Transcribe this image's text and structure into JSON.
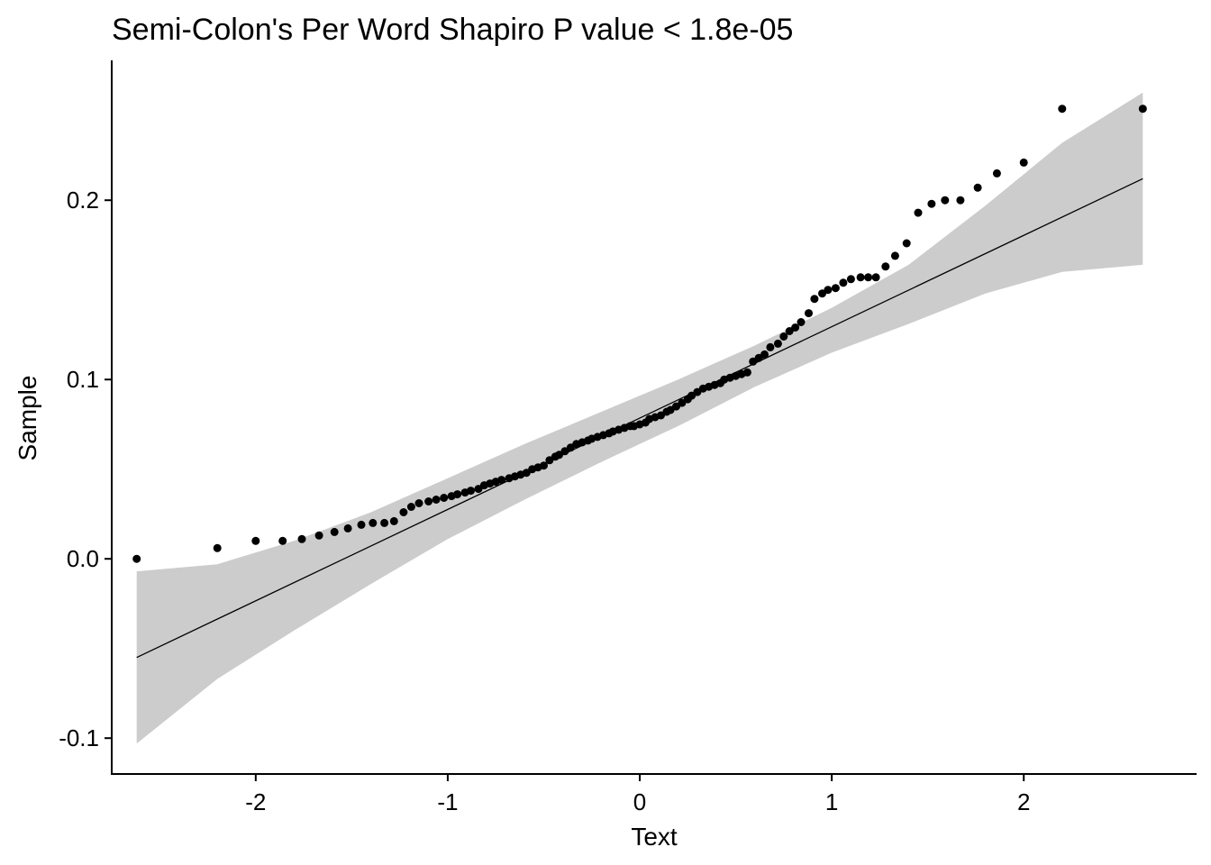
{
  "chart_data": {
    "type": "scatter",
    "title": "Semi-Colon's Per Word Shapiro P value <  1.8e-05",
    "xlabel": "Text",
    "ylabel": "Sample",
    "xlim": [
      -2.75,
      2.9
    ],
    "ylim": [
      -0.12,
      0.278
    ],
    "x_ticks": [
      -2,
      -1,
      0,
      1,
      2
    ],
    "x_tick_labels": [
      "-2",
      "-1",
      "0",
      "1",
      "2"
    ],
    "y_ticks": [
      -0.1,
      0.0,
      0.1,
      0.2
    ],
    "y_tick_labels": [
      "-0.1",
      "0.0",
      "0.1",
      "0.2"
    ],
    "grid": false,
    "colors": {
      "points": "#000000",
      "line": "#000000",
      "band": "#cccccc"
    },
    "reference_line": {
      "x": [
        -2.62,
        2.62
      ],
      "y": [
        -0.055,
        0.212
      ]
    },
    "confidence_band": {
      "x": [
        -2.62,
        -2.2,
        -1.8,
        -1.4,
        -1.0,
        -0.6,
        -0.2,
        0.0,
        0.2,
        0.6,
        1.0,
        1.4,
        1.8,
        2.2,
        2.62
      ],
      "upper": [
        -0.007,
        -0.003,
        0.01,
        0.026,
        0.045,
        0.064,
        0.082,
        0.091,
        0.1,
        0.119,
        0.14,
        0.164,
        0.197,
        0.232,
        0.26
      ],
      "lower": [
        -0.103,
        -0.067,
        -0.04,
        -0.014,
        0.011,
        0.033,
        0.054,
        0.064,
        0.074,
        0.096,
        0.115,
        0.131,
        0.148,
        0.16,
        0.164
      ]
    },
    "points": {
      "x": [
        -2.62,
        -2.2,
        -2.0,
        -1.86,
        -1.76,
        -1.67,
        -1.59,
        -1.52,
        -1.45,
        -1.39,
        -1.33,
        -1.28,
        -1.23,
        -1.19,
        -1.15,
        -1.1,
        -1.06,
        -1.02,
        -0.98,
        -0.95,
        -0.91,
        -0.88,
        -0.84,
        -0.81,
        -0.78,
        -0.75,
        -0.72,
        -0.68,
        -0.65,
        -0.62,
        -0.59,
        -0.56,
        -0.53,
        -0.5,
        -0.47,
        -0.44,
        -0.42,
        -0.39,
        -0.36,
        -0.33,
        -0.3,
        -0.27,
        -0.25,
        -0.22,
        -0.19,
        -0.16,
        -0.14,
        -0.11,
        -0.08,
        -0.05,
        -0.03,
        0.0,
        0.03,
        0.05,
        0.08,
        0.11,
        0.14,
        0.16,
        0.19,
        0.22,
        0.25,
        0.27,
        0.3,
        0.33,
        0.36,
        0.39,
        0.42,
        0.44,
        0.47,
        0.5,
        0.53,
        0.56,
        0.59,
        0.62,
        0.65,
        0.68,
        0.72,
        0.75,
        0.78,
        0.81,
        0.84,
        0.88,
        0.91,
        0.95,
        0.98,
        1.02,
        1.06,
        1.1,
        1.15,
        1.19,
        1.23,
        1.28,
        1.33,
        1.39,
        1.45,
        1.52,
        1.59,
        1.67,
        1.76,
        1.86,
        2.0,
        2.2,
        2.62
      ],
      "y": [
        0.0,
        0.006,
        0.01,
        0.01,
        0.011,
        0.013,
        0.015,
        0.017,
        0.019,
        0.02,
        0.02,
        0.021,
        0.026,
        0.029,
        0.031,
        0.032,
        0.033,
        0.034,
        0.035,
        0.036,
        0.037,
        0.038,
        0.039,
        0.041,
        0.042,
        0.043,
        0.044,
        0.045,
        0.046,
        0.047,
        0.048,
        0.05,
        0.051,
        0.052,
        0.055,
        0.057,
        0.058,
        0.06,
        0.062,
        0.064,
        0.065,
        0.066,
        0.067,
        0.068,
        0.069,
        0.07,
        0.071,
        0.072,
        0.073,
        0.074,
        0.074,
        0.075,
        0.076,
        0.078,
        0.079,
        0.08,
        0.082,
        0.083,
        0.085,
        0.087,
        0.089,
        0.091,
        0.093,
        0.095,
        0.096,
        0.097,
        0.098,
        0.1,
        0.101,
        0.102,
        0.103,
        0.104,
        0.11,
        0.112,
        0.114,
        0.118,
        0.12,
        0.124,
        0.127,
        0.129,
        0.132,
        0.137,
        0.145,
        0.148,
        0.15,
        0.151,
        0.154,
        0.156,
        0.157,
        0.157,
        0.157,
        0.163,
        0.169,
        0.176,
        0.193,
        0.198,
        0.2,
        0.2,
        0.207,
        0.215,
        0.221,
        0.251,
        0.251
      ]
    }
  }
}
